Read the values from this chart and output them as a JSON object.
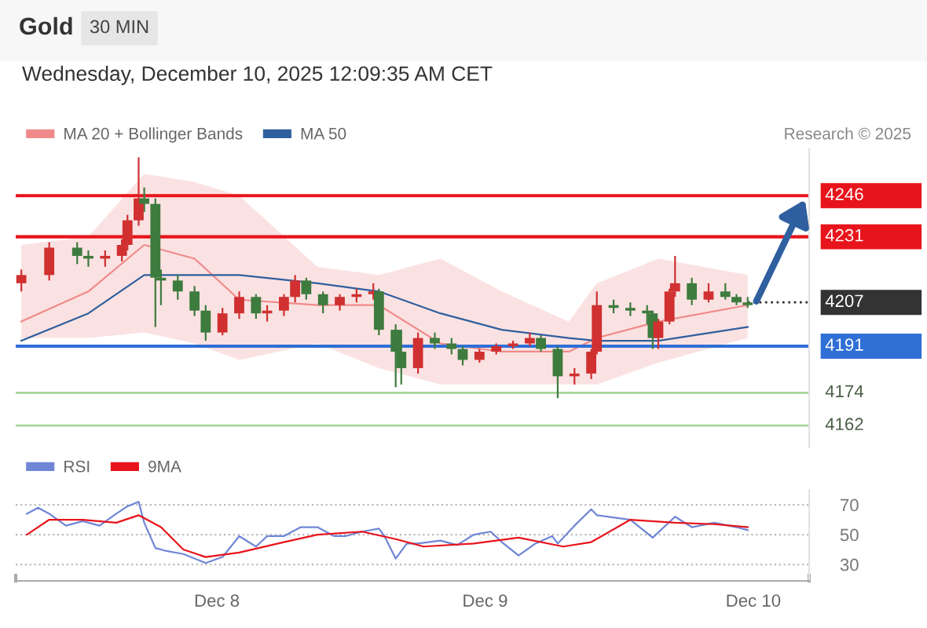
{
  "chart_data": [
    {
      "type": "candlestick",
      "title": "Gold",
      "subtitle": "Wednesday, December 10, 2025 12:09:35 AM CET",
      "annotations": [
        "30 MIN",
        "Research © 2025"
      ],
      "x": [
        "2025-12-07T06:30",
        "2025-12-07T09:00",
        "2025-12-07T11:30",
        "2025-12-07T12:30",
        "2025-12-07T14:00",
        "2025-12-07T15:30",
        "2025-12-07T16:00",
        "2025-12-07T17:00",
        "2025-12-07T17:30",
        "2025-12-07T18:30",
        "2025-12-07T19:00",
        "2025-12-07T20:30",
        "2025-12-07T22:00",
        "2025-12-07T23:00",
        "2025-12-08T00:30",
        "2025-12-08T02:00",
        "2025-12-08T03:30",
        "2025-12-08T04:30",
        "2025-12-08T06:00",
        "2025-12-08T07:00",
        "2025-12-08T08:00",
        "2025-12-08T09:30",
        "2025-12-08T11:00",
        "2025-12-08T12:30",
        "2025-12-08T14:00",
        "2025-12-08T14:30",
        "2025-12-08T16:00",
        "2025-12-08T16:30",
        "2025-12-08T18:00",
        "2025-12-08T19:30",
        "2025-12-08T21:00",
        "2025-12-08T22:00",
        "2025-12-08T23:30",
        "2025-12-09T01:00",
        "2025-12-09T02:30",
        "2025-12-09T04:00",
        "2025-12-09T05:00",
        "2025-12-09T06:30",
        "2025-12-09T08:00",
        "2025-12-09T09:30",
        "2025-12-09T10:00",
        "2025-12-09T11:30",
        "2025-12-09T13:00",
        "2025-12-09T14:30",
        "2025-12-09T15:00",
        "2025-12-09T15:30",
        "2025-12-09T16:30",
        "2025-12-09T17:00",
        "2025-12-09T18:30",
        "2025-12-09T20:00",
        "2025-12-09T21:30",
        "2025-12-09T22:30",
        "2025-12-09T23:30"
      ],
      "ohlc": [
        [
          4214,
          4219,
          4211,
          4217
        ],
        [
          4217,
          4229,
          4215,
          4227
        ],
        [
          4227,
          4229,
          4221,
          4224
        ],
        [
          4224,
          4226,
          4220,
          4223
        ],
        [
          4223,
          4226,
          4220,
          4224
        ],
        [
          4224,
          4230,
          4222,
          4228
        ],
        [
          4228,
          4239,
          4226,
          4237
        ],
        [
          4237,
          4260,
          4235,
          4245
        ],
        [
          4245,
          4249,
          4240,
          4243
        ],
        [
          4243,
          4245,
          4198,
          4216
        ],
        [
          4216,
          4219,
          4206,
          4215
        ],
        [
          4215,
          4217,
          4208,
          4211
        ],
        [
          4211,
          4213,
          4202,
          4204
        ],
        [
          4204,
          4206,
          4193,
          4196
        ],
        [
          4196,
          4205,
          4195,
          4203
        ],
        [
          4203,
          4211,
          4201,
          4209
        ],
        [
          4209,
          4210,
          4201,
          4203
        ],
        [
          4203,
          4206,
          4200,
          4204
        ],
        [
          4204,
          4210,
          4202,
          4209
        ],
        [
          4209,
          4217,
          4207,
          4215
        ],
        [
          4215,
          4216,
          4208,
          4210
        ],
        [
          4210,
          4211,
          4203,
          4206
        ],
        [
          4206,
          4210,
          4204,
          4209
        ],
        [
          4209,
          4212,
          4207,
          4210
        ],
        [
          4210,
          4214,
          4208,
          4211
        ],
        [
          4211,
          4212,
          4195,
          4197
        ],
        [
          4197,
          4199,
          4176,
          4189
        ],
        [
          4189,
          4197,
          4177,
          4183
        ],
        [
          4183,
          4196,
          4181,
          4194
        ],
        [
          4194,
          4196,
          4190,
          4192
        ],
        [
          4192,
          4194,
          4188,
          4190
        ],
        [
          4190,
          4191,
          4184,
          4186
        ],
        [
          4186,
          4190,
          4185,
          4189
        ],
        [
          4189,
          4192,
          4188,
          4191
        ],
        [
          4191,
          4193,
          4190,
          4192
        ],
        [
          4192,
          4196,
          4191,
          4194
        ],
        [
          4194,
          4195,
          4189,
          4190
        ],
        [
          4190,
          4191,
          4172,
          4180
        ],
        [
          4180,
          4183,
          4177,
          4181
        ],
        [
          4181,
          4190,
          4179,
          4189
        ],
        [
          4189,
          4211,
          4188,
          4206
        ],
        [
          4206,
          4208,
          4203,
          4205
        ],
        [
          4205,
          4207,
          4202,
          4204
        ],
        [
          4204,
          4206,
          4199,
          4203
        ],
        [
          4203,
          4204,
          4190,
          4194
        ],
        [
          4194,
          4201,
          4190,
          4200
        ],
        [
          4200,
          4212,
          4199,
          4211
        ],
        [
          4211,
          4224,
          4209,
          4214
        ],
        [
          4214,
          4216,
          4206,
          4208
        ],
        [
          4208,
          4214,
          4207,
          4211
        ],
        [
          4211,
          4214,
          4208,
          4209
        ],
        [
          4209,
          4210,
          4206,
          4207
        ],
        [
          4207,
          4209,
          4205,
          4206
        ]
      ],
      "colors": [
        "#d03030",
        "#d03030",
        "#3e7b3e",
        "#3e7b3e",
        "#d03030",
        "#d03030",
        "#d03030",
        "#d03030",
        "#3e7b3e",
        "#3e7b3e",
        "#3e7b3e",
        "#3e7b3e",
        "#3e7b3e",
        "#3e7b3e",
        "#d03030",
        "#d03030",
        "#3e7b3e",
        "#d03030",
        "#d03030",
        "#d03030",
        "#3e7b3e",
        "#3e7b3e",
        "#d03030",
        "#d03030",
        "#d03030",
        "#3e7b3e",
        "#3e7b3e",
        "#3e7b3e",
        "#d03030",
        "#3e7b3e",
        "#3e7b3e",
        "#3e7b3e",
        "#d03030",
        "#d03030",
        "#d03030",
        "#d03030",
        "#3e7b3e",
        "#3e7b3e",
        "#d03030",
        "#d03030",
        "#d03030",
        "#3e7b3e",
        "#3e7b3e",
        "#3e7b3e",
        "#3e7b3e",
        "#d03030",
        "#d03030",
        "#d03030",
        "#3e7b3e",
        "#d03030",
        "#3e7b3e",
        "#3e7b3e",
        "#3e7b3e"
      ],
      "series": [
        {
          "type": "line",
          "name": "MA 20 + Bollinger Bands",
          "color": "#f08a8a",
          "x": [
            "2025-12-07T06:30",
            "2025-12-07T12:30",
            "2025-12-07T17:30",
            "2025-12-07T22:00",
            "2025-12-08T02:00",
            "2025-12-08T09:00",
            "2025-12-08T14:30",
            "2025-12-08T20:00",
            "2025-12-09T01:30",
            "2025-12-09T07:30",
            "2025-12-09T10:00",
            "2025-12-09T15:30",
            "2025-12-09T23:30"
          ],
          "values": [
            4200,
            4211,
            4228,
            4223,
            4208,
            4206,
            4206,
            4192,
            4189,
            4189,
            4194,
            4200,
            4206
          ],
          "upper": [
            4228,
            4231,
            4254,
            4251,
            4246,
            4220,
            4217,
            4223,
            4211,
            4200,
            4214,
            4223,
            4217
          ],
          "lower": [
            4194,
            4194,
            4196,
            4192,
            4186,
            4192,
            4183,
            4177,
            4177,
            4177,
            4177,
            4185,
            4194
          ]
        },
        {
          "type": "line",
          "name": "MA 50",
          "color": "#2f5f9f",
          "x": [
            "2025-12-07T06:30",
            "2025-12-07T12:30",
            "2025-12-07T17:30",
            "2025-12-07T22:00",
            "2025-12-08T02:00",
            "2025-12-08T09:00",
            "2025-12-08T14:30",
            "2025-12-08T20:00",
            "2025-12-09T01:30",
            "2025-12-09T07:30",
            "2025-12-09T10:00",
            "2025-12-09T15:30",
            "2025-12-09T23:30"
          ],
          "values": [
            4193,
            4203,
            4217,
            4217,
            4217,
            4214,
            4211,
            4203,
            4197,
            4194,
            4193,
            4193,
            4198
          ]
        }
      ],
      "ref_lines": [
        {
          "axis": "y",
          "value": 4246,
          "label": "4246",
          "color": "#e8141b"
        },
        {
          "axis": "y",
          "value": 4231,
          "label": "4231",
          "color": "#e8141b"
        },
        {
          "axis": "y",
          "value": 4207,
          "label": "4207",
          "color": "#333333",
          "line_style": "dotted"
        },
        {
          "axis": "y",
          "value": 4191,
          "label": "4191",
          "color": "#2f6fd6"
        },
        {
          "axis": "y",
          "value": 4174,
          "label": "4174",
          "color": "#a6d49a"
        },
        {
          "axis": "y",
          "value": 4162,
          "label": "4162",
          "color": "#a6d49a"
        }
      ],
      "xlim": [
        "2025-12-07T06:00",
        "2025-12-10T05:00"
      ],
      "ylim": [
        4154,
        4263
      ],
      "tick_labels": false,
      "legend": "top left",
      "grid": false
    },
    {
      "type": "line",
      "xticks": [
        {
          "value": "2025-12-08",
          "label": "Dec 8"
        },
        {
          "value": "2025-12-09",
          "label": "Dec 9"
        },
        {
          "value": "2025-12-10",
          "label": "Dec 10"
        }
      ],
      "xlim": [
        "2025-12-07T06:00",
        "2025-12-10T05:00"
      ],
      "ylim": [
        19,
        80
      ],
      "yticks": [
        30,
        50,
        70
      ],
      "grid": "y",
      "legend": "top left",
      "series": [
        {
          "name": "RSI",
          "color": "#6f86d6",
          "x": [
            "2025-12-07T07:00",
            "2025-12-07T08:00",
            "2025-12-07T09:00",
            "2025-12-07T10:30",
            "2025-12-07T12:00",
            "2025-12-07T13:30",
            "2025-12-07T15:00",
            "2025-12-07T16:00",
            "2025-12-07T17:00",
            "2025-12-07T17:30",
            "2025-12-07T18:30",
            "2025-12-07T19:30",
            "2025-12-07T21:00",
            "2025-12-07T23:00",
            "2025-12-08T00:30",
            "2025-12-08T02:00",
            "2025-12-08T03:30",
            "2025-12-08T04:30",
            "2025-12-08T06:00",
            "2025-12-08T07:30",
            "2025-12-08T09:00",
            "2025-12-08T10:30",
            "2025-12-08T11:30",
            "2025-12-08T13:00",
            "2025-12-08T14:30",
            "2025-12-08T15:00",
            "2025-12-08T16:00",
            "2025-12-08T17:00",
            "2025-12-08T18:00",
            "2025-12-08T20:00",
            "2025-12-08T21:30",
            "2025-12-08T23:00",
            "2025-12-09T00:30",
            "2025-12-09T01:30",
            "2025-12-09T03:00",
            "2025-12-09T04:30",
            "2025-12-09T06:00",
            "2025-12-09T06:30",
            "2025-12-09T08:00",
            "2025-12-09T09:30",
            "2025-12-09T10:00",
            "2025-12-09T13:00",
            "2025-12-09T15:00",
            "2025-12-09T17:00",
            "2025-12-09T18:30",
            "2025-12-09T20:30",
            "2025-12-09T22:30",
            "2025-12-09T23:30"
          ],
          "values": [
            64,
            68,
            64,
            56,
            59,
            56,
            64,
            69,
            72,
            58,
            41,
            39,
            37,
            31,
            35,
            49,
            42,
            49,
            49,
            55,
            55,
            49,
            49,
            52,
            54,
            49,
            34,
            44,
            44,
            46,
            43,
            50,
            52,
            45,
            36,
            44,
            49,
            44,
            56,
            67,
            63,
            60,
            48,
            62,
            55,
            58,
            55,
            53
          ]
        },
        {
          "name": "9MA",
          "color": "#e8141b",
          "x": [
            "2025-12-07T07:00",
            "2025-12-07T09:00",
            "2025-12-07T12:00",
            "2025-12-07T15:00",
            "2025-12-07T17:00",
            "2025-12-07T19:00",
            "2025-12-07T21:00",
            "2025-12-07T23:00",
            "2025-12-08T02:00",
            "2025-12-08T06:00",
            "2025-12-08T09:00",
            "2025-12-08T13:00",
            "2025-12-08T16:00",
            "2025-12-08T18:30",
            "2025-12-08T23:00",
            "2025-12-09T03:00",
            "2025-12-09T07:00",
            "2025-12-09T09:30",
            "2025-12-09T13:00",
            "2025-12-09T17:00",
            "2025-12-09T20:30",
            "2025-12-09T23:30"
          ],
          "values": [
            50,
            60,
            60,
            58,
            63,
            55,
            40,
            35,
            38,
            45,
            50,
            52,
            47,
            42,
            44,
            48,
            42,
            45,
            60,
            58,
            57,
            55
          ]
        }
      ]
    }
  ]
}
